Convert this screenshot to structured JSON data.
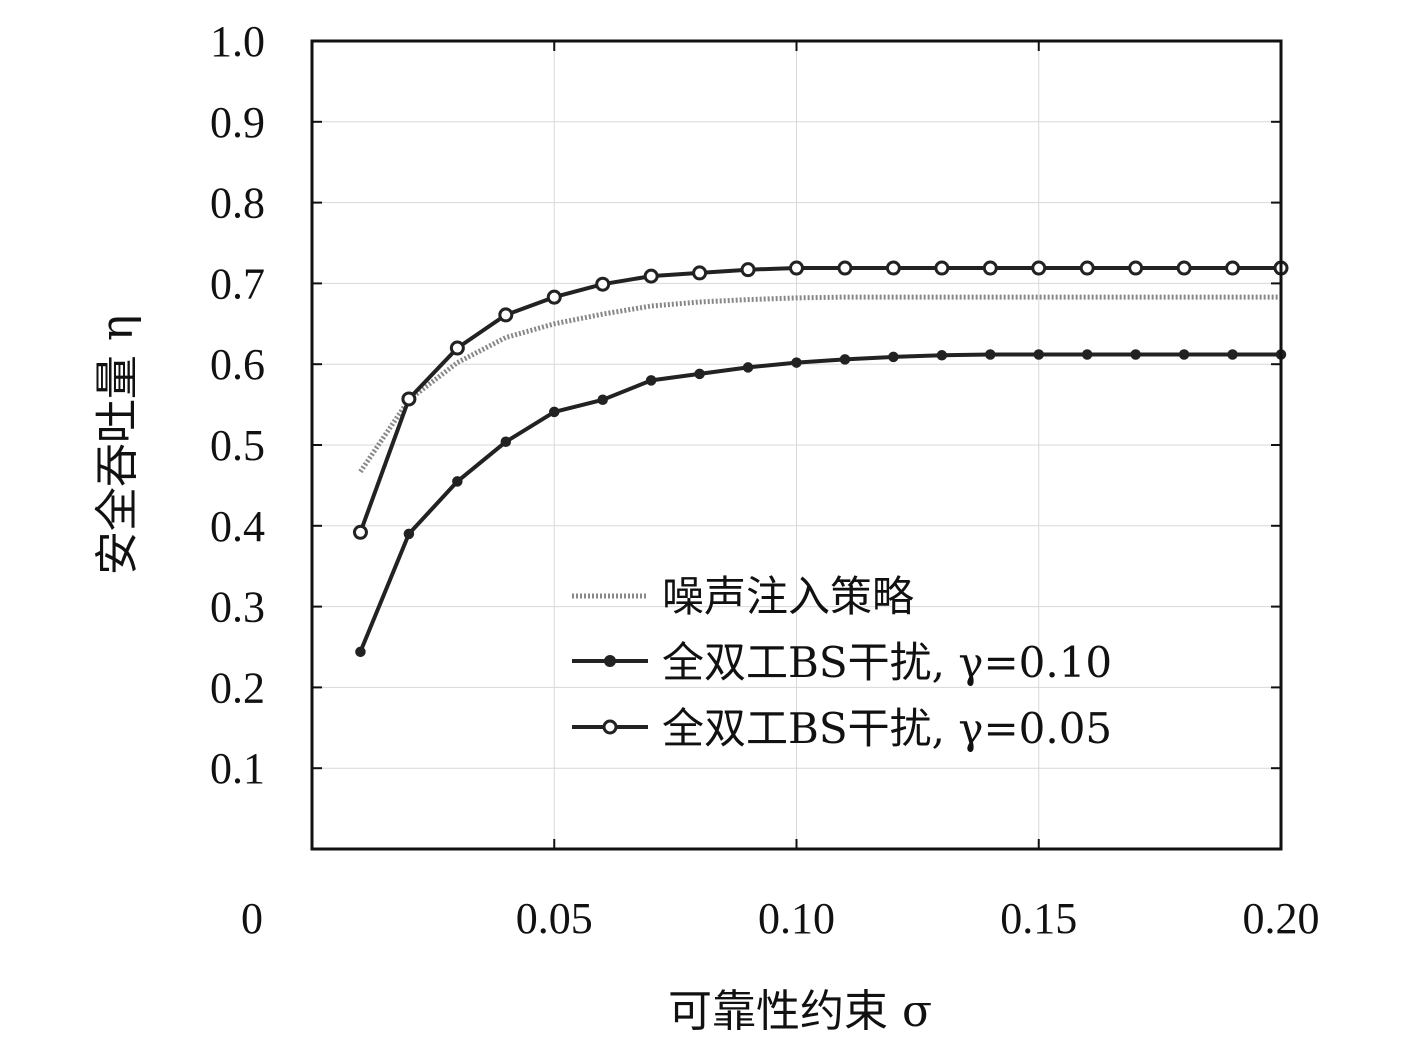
{
  "chart_data": {
    "type": "line",
    "xlabel": "可靠性约束 σ",
    "ylabel": "安全吞吐量 η",
    "xlim": [
      0,
      0.2
    ],
    "ylim": [
      0,
      1.0
    ],
    "x_ticks": [
      "0",
      "0.05",
      "0.10",
      "0.15",
      "0.20"
    ],
    "y_ticks": [
      "0.1",
      "0.2",
      "0.3",
      "0.4",
      "0.5",
      "0.6",
      "0.7",
      "0.8",
      "0.9",
      "1.0"
    ],
    "grid": true,
    "legend_position": "bottom-right",
    "series": [
      {
        "name": "噪声注入策略",
        "style": "dotted",
        "color": "#888888",
        "marker": "none",
        "x": [
          0.01,
          0.02,
          0.03,
          0.04,
          0.05,
          0.06,
          0.07,
          0.08,
          0.09,
          0.1,
          0.11,
          0.12,
          0.13,
          0.14,
          0.15,
          0.16,
          0.17,
          0.18,
          0.19,
          0.2
        ],
        "values": [
          0.467,
          0.556,
          0.602,
          0.633,
          0.65,
          0.662,
          0.672,
          0.677,
          0.68,
          0.682,
          0.683,
          0.683,
          0.683,
          0.683,
          0.683,
          0.683,
          0.683,
          0.683,
          0.683,
          0.683
        ]
      },
      {
        "name": "全双工BS干扰, γ=0.10",
        "style": "solid",
        "color": "#222222",
        "marker": "filled-circle",
        "x": [
          0.01,
          0.02,
          0.03,
          0.04,
          0.05,
          0.06,
          0.07,
          0.08,
          0.09,
          0.1,
          0.11,
          0.12,
          0.13,
          0.14,
          0.15,
          0.16,
          0.17,
          0.18,
          0.19,
          0.2
        ],
        "values": [
          0.244,
          0.39,
          0.455,
          0.504,
          0.541,
          0.556,
          0.58,
          0.588,
          0.596,
          0.602,
          0.606,
          0.609,
          0.611,
          0.612,
          0.612,
          0.612,
          0.612,
          0.612,
          0.612,
          0.612
        ]
      },
      {
        "name": "全双工BS干扰, γ=0.05",
        "style": "solid",
        "color": "#222222",
        "marker": "open-circle",
        "x": [
          0.01,
          0.02,
          0.03,
          0.04,
          0.05,
          0.06,
          0.07,
          0.08,
          0.09,
          0.1,
          0.11,
          0.12,
          0.13,
          0.14,
          0.15,
          0.16,
          0.17,
          0.18,
          0.19,
          0.2
        ],
        "values": [
          0.392,
          0.557,
          0.62,
          0.661,
          0.683,
          0.699,
          0.709,
          0.713,
          0.717,
          0.719,
          0.719,
          0.719,
          0.719,
          0.719,
          0.719,
          0.719,
          0.719,
          0.719,
          0.719,
          0.719
        ]
      }
    ]
  }
}
